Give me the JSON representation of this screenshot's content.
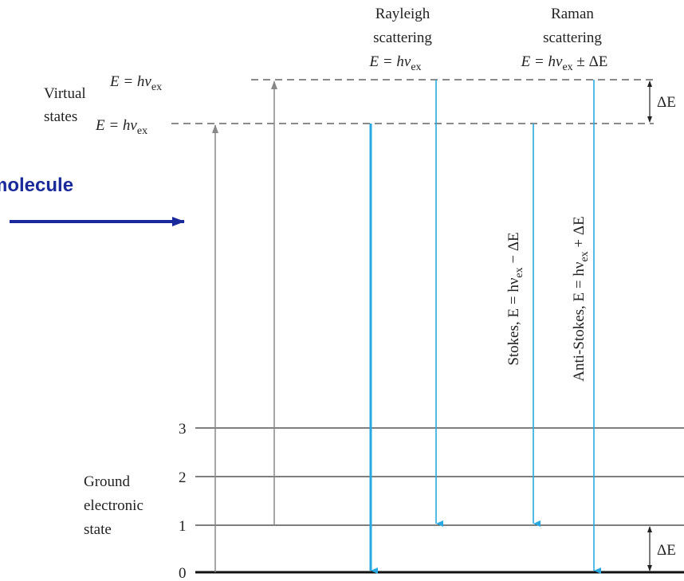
{
  "incoming": {
    "label": "molecule"
  },
  "rayleigh": {
    "line1": "Rayleigh",
    "line2": "scattering",
    "formula": [
      "E = hν",
      "ex"
    ]
  },
  "raman": {
    "line1": "Raman",
    "line2": "scattering",
    "formula": [
      "E = hν",
      "ex",
      " ± ΔE"
    ]
  },
  "virtual_states": {
    "line1": "Virtual",
    "line2": "states",
    "upper": [
      "E = hν",
      "ex"
    ],
    "lower": [
      "E = hν",
      "ex"
    ]
  },
  "delta_upper": "ΔE",
  "delta_lower": "ΔE",
  "stokes": [
    "Stokes, E = hν",
    "ex",
    " − ΔE"
  ],
  "anti_stokes": [
    "Anti-Stokes, E = hν",
    "ex",
    " + ΔE"
  ],
  "levels": [
    "0",
    "1",
    "2",
    "3"
  ],
  "ground": {
    "line1": "Ground",
    "line2": "electronic",
    "line3": "state"
  }
}
